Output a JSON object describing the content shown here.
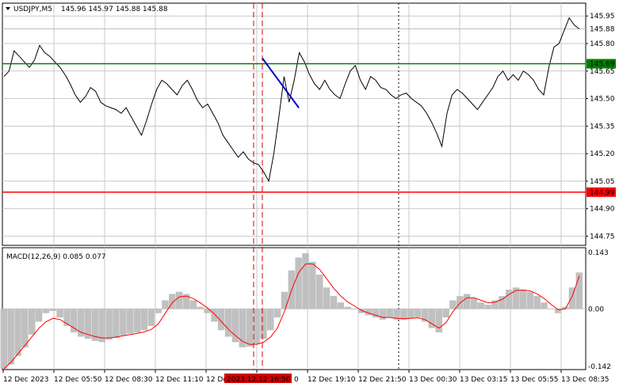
{
  "header": {
    "symbol": "USDJPY,M5",
    "ohlc": "145.96 145.97 145.88 145.88"
  },
  "price_axis": {
    "ticks": [
      "145.95",
      "145.80",
      "145.65",
      "145.50",
      "145.35",
      "145.20",
      "145.05",
      "144.90",
      "144.75"
    ],
    "tick_values": [
      145.95,
      145.8,
      145.65,
      145.5,
      145.35,
      145.2,
      145.05,
      144.9,
      144.75
    ],
    "current_label": "145.88",
    "current_value": 145.88,
    "resistance_label": "145.69",
    "resistance_value": 145.69,
    "support_label": "144.99",
    "support_value": 144.99
  },
  "indicator": {
    "title": "MACD(12,26,9) 0.085 0.077",
    "ticks": [
      "0.143",
      "0.00",
      "-0.142"
    ],
    "tick_values": [
      0.143,
      0.0,
      -0.142
    ]
  },
  "time_axis": {
    "labels": [
      "12 Dec 2023",
      "12 Dec 05:50",
      "12 Dec 08:30",
      "12 Dec 11:10",
      "12 De",
      "0",
      "12 Dec 19:10",
      "12 Dec 21:50",
      "13 Dec 00:30",
      "13 Dec 03:15",
      "13 Dec 05:55",
      "13 Dec 08:35"
    ],
    "highlight_label": "2023.12.12 16:50"
  },
  "colors": {
    "price_line": "#000000",
    "resistance": "#008000",
    "support": "#ff0000",
    "signal": "#ff0000",
    "histogram": "#c0c0c0",
    "marker": "#d00000",
    "trend_line": "#0000cc",
    "grid": "#c8c8c8"
  },
  "chart_data": [
    {
      "type": "line",
      "series": [
        {
          "values": [
            145.62,
            145.65,
            145.76,
            145.73,
            145.7,
            145.67,
            145.71,
            145.79,
            145.75,
            145.73,
            145.7,
            145.67,
            145.63,
            145.58,
            145.52,
            145.48,
            145.51,
            145.56,
            145.54,
            145.48,
            145.46,
            145.45,
            145.44,
            145.42,
            145.45,
            145.4,
            145.35,
            145.3,
            145.38,
            145.47,
            145.55,
            145.6,
            145.58,
            145.55,
            145.52,
            145.57,
            145.6,
            145.55,
            145.49,
            145.45,
            145.47,
            145.42,
            145.37,
            145.3,
            145.26,
            145.22,
            145.18,
            145.21,
            145.17,
            145.15,
            145.14,
            145.1,
            145.05,
            145.2,
            145.4,
            145.62,
            145.48,
            145.6,
            145.75,
            145.7,
            145.63,
            145.58,
            145.55,
            145.6,
            145.55,
            145.52,
            145.5,
            145.58,
            145.65,
            145.68,
            145.6,
            145.55,
            145.62,
            145.6,
            145.56,
            145.55,
            145.52,
            145.5,
            145.52,
            145.53,
            145.5,
            145.48,
            145.46,
            145.42,
            145.37,
            145.31,
            145.24,
            145.42,
            145.52,
            145.55,
            145.53,
            145.5,
            145.47,
            145.44,
            145.48,
            145.52,
            145.56,
            145.62,
            145.65,
            145.6,
            145.63,
            145.6,
            145.65,
            145.63,
            145.6,
            145.55,
            145.52,
            145.67,
            145.78,
            145.8,
            145.87,
            145.94,
            145.9,
            145.88
          ]
        }
      ],
      "ylim": [
        144.7,
        146.02
      ]
    },
    {
      "type": "bar",
      "series": [
        {
          "name": "MACD",
          "values": [
            -0.14,
            -0.13,
            -0.11,
            -0.09,
            -0.06,
            -0.03,
            -0.01,
            -0.005,
            -0.02,
            -0.04,
            -0.055,
            -0.065,
            -0.07,
            -0.075,
            -0.078,
            -0.072,
            -0.068,
            -0.062,
            -0.058,
            -0.055,
            -0.05,
            -0.04,
            -0.01,
            0.02,
            0.035,
            0.04,
            0.035,
            0.02,
            0.005,
            -0.01,
            -0.03,
            -0.05,
            -0.065,
            -0.078,
            -0.09,
            -0.088,
            -0.082,
            -0.07,
            -0.05,
            -0.02,
            0.04,
            0.09,
            0.12,
            0.13,
            0.11,
            0.08,
            0.05,
            0.03,
            0.015,
            0.005,
            0.0,
            -0.01,
            -0.015,
            -0.02,
            -0.025,
            -0.02,
            -0.025,
            -0.025,
            -0.022,
            -0.02,
            -0.03,
            -0.045,
            -0.055,
            -0.02,
            0.02,
            0.03,
            0.035,
            0.025,
            0.015,
            0.01,
            0.02,
            0.03,
            0.045,
            0.05,
            0.045,
            0.04,
            0.03,
            0.015,
            0.0,
            -0.01,
            0.005,
            0.05,
            0.085
          ]
        },
        {
          "name": "Signal",
          "values": [
            -0.14,
            -0.125,
            -0.105,
            -0.085,
            -0.065,
            -0.045,
            -0.03,
            -0.022,
            -0.025,
            -0.035,
            -0.045,
            -0.055,
            -0.06,
            -0.065,
            -0.068,
            -0.068,
            -0.066,
            -0.063,
            -0.06,
            -0.057,
            -0.054,
            -0.048,
            -0.035,
            -0.01,
            0.015,
            0.028,
            0.03,
            0.024,
            0.014,
            0.002,
            -0.012,
            -0.03,
            -0.048,
            -0.063,
            -0.076,
            -0.083,
            -0.083,
            -0.078,
            -0.066,
            -0.044,
            -0.005,
            0.045,
            0.085,
            0.105,
            0.105,
            0.092,
            0.07,
            0.048,
            0.03,
            0.016,
            0.006,
            -0.004,
            -0.01,
            -0.015,
            -0.02,
            -0.02,
            -0.022,
            -0.023,
            -0.022,
            -0.021,
            -0.025,
            -0.035,
            -0.045,
            -0.032,
            -0.006,
            0.014,
            0.026,
            0.026,
            0.02,
            0.014,
            0.016,
            0.022,
            0.034,
            0.043,
            0.044,
            0.042,
            0.035,
            0.024,
            0.01,
            -0.002,
            0.0,
            0.03,
            0.077
          ]
        }
      ],
      "ylim": [
        -0.142,
        0.143
      ]
    }
  ]
}
